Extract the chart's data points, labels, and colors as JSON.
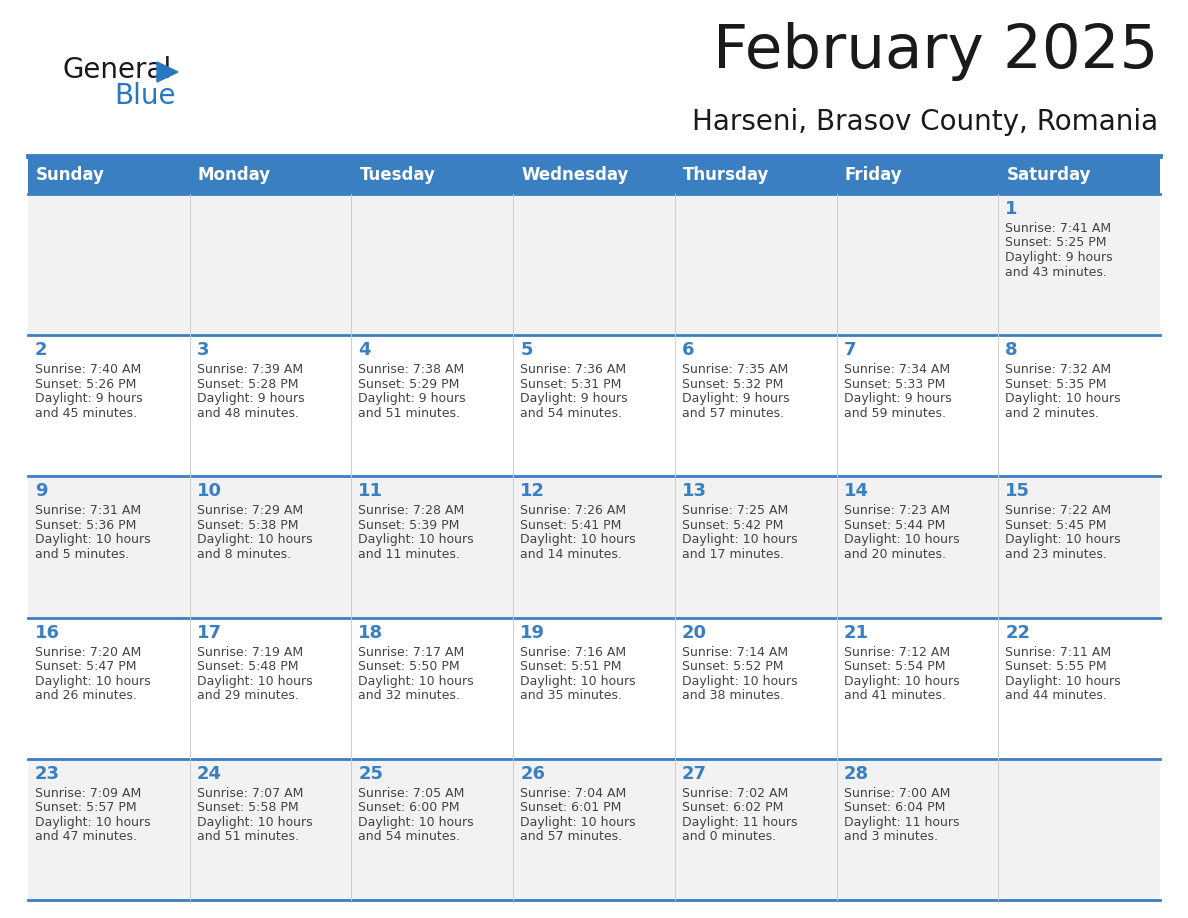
{
  "title": "February 2025",
  "subtitle": "Harseni, Brasov County, Romania",
  "days_of_week": [
    "Sunday",
    "Monday",
    "Tuesday",
    "Wednesday",
    "Thursday",
    "Friday",
    "Saturday"
  ],
  "header_bg": "#3A7FC1",
  "header_text": "#FFFFFF",
  "row_bg_light": "#F2F2F2",
  "row_bg_white": "#FFFFFF",
  "divider_color": "#3A7FC1",
  "text_color": "#444444",
  "day_number_color": "#3A7FC1",
  "logo_general_color": "#1a1a1a",
  "logo_blue_color": "#2878C0",
  "calendar_data": [
    {
      "day": 1,
      "col": 6,
      "row": 0,
      "sunrise": "7:41 AM",
      "sunset": "5:25 PM",
      "daylight_h": "9 hours",
      "daylight_m": "43 minutes."
    },
    {
      "day": 2,
      "col": 0,
      "row": 1,
      "sunrise": "7:40 AM",
      "sunset": "5:26 PM",
      "daylight_h": "9 hours",
      "daylight_m": "45 minutes."
    },
    {
      "day": 3,
      "col": 1,
      "row": 1,
      "sunrise": "7:39 AM",
      "sunset": "5:28 PM",
      "daylight_h": "9 hours",
      "daylight_m": "48 minutes."
    },
    {
      "day": 4,
      "col": 2,
      "row": 1,
      "sunrise": "7:38 AM",
      "sunset": "5:29 PM",
      "daylight_h": "9 hours",
      "daylight_m": "51 minutes."
    },
    {
      "day": 5,
      "col": 3,
      "row": 1,
      "sunrise": "7:36 AM",
      "sunset": "5:31 PM",
      "daylight_h": "9 hours",
      "daylight_m": "54 minutes."
    },
    {
      "day": 6,
      "col": 4,
      "row": 1,
      "sunrise": "7:35 AM",
      "sunset": "5:32 PM",
      "daylight_h": "9 hours",
      "daylight_m": "57 minutes."
    },
    {
      "day": 7,
      "col": 5,
      "row": 1,
      "sunrise": "7:34 AM",
      "sunset": "5:33 PM",
      "daylight_h": "9 hours",
      "daylight_m": "59 minutes."
    },
    {
      "day": 8,
      "col": 6,
      "row": 1,
      "sunrise": "7:32 AM",
      "sunset": "5:35 PM",
      "daylight_h": "10 hours",
      "daylight_m": "2 minutes."
    },
    {
      "day": 9,
      "col": 0,
      "row": 2,
      "sunrise": "7:31 AM",
      "sunset": "5:36 PM",
      "daylight_h": "10 hours",
      "daylight_m": "5 minutes."
    },
    {
      "day": 10,
      "col": 1,
      "row": 2,
      "sunrise": "7:29 AM",
      "sunset": "5:38 PM",
      "daylight_h": "10 hours",
      "daylight_m": "8 minutes."
    },
    {
      "day": 11,
      "col": 2,
      "row": 2,
      "sunrise": "7:28 AM",
      "sunset": "5:39 PM",
      "daylight_h": "10 hours",
      "daylight_m": "11 minutes."
    },
    {
      "day": 12,
      "col": 3,
      "row": 2,
      "sunrise": "7:26 AM",
      "sunset": "5:41 PM",
      "daylight_h": "10 hours",
      "daylight_m": "14 minutes."
    },
    {
      "day": 13,
      "col": 4,
      "row": 2,
      "sunrise": "7:25 AM",
      "sunset": "5:42 PM",
      "daylight_h": "10 hours",
      "daylight_m": "17 minutes."
    },
    {
      "day": 14,
      "col": 5,
      "row": 2,
      "sunrise": "7:23 AM",
      "sunset": "5:44 PM",
      "daylight_h": "10 hours",
      "daylight_m": "20 minutes."
    },
    {
      "day": 15,
      "col": 6,
      "row": 2,
      "sunrise": "7:22 AM",
      "sunset": "5:45 PM",
      "daylight_h": "10 hours",
      "daylight_m": "23 minutes."
    },
    {
      "day": 16,
      "col": 0,
      "row": 3,
      "sunrise": "7:20 AM",
      "sunset": "5:47 PM",
      "daylight_h": "10 hours",
      "daylight_m": "26 minutes."
    },
    {
      "day": 17,
      "col": 1,
      "row": 3,
      "sunrise": "7:19 AM",
      "sunset": "5:48 PM",
      "daylight_h": "10 hours",
      "daylight_m": "29 minutes."
    },
    {
      "day": 18,
      "col": 2,
      "row": 3,
      "sunrise": "7:17 AM",
      "sunset": "5:50 PM",
      "daylight_h": "10 hours",
      "daylight_m": "32 minutes."
    },
    {
      "day": 19,
      "col": 3,
      "row": 3,
      "sunrise": "7:16 AM",
      "sunset": "5:51 PM",
      "daylight_h": "10 hours",
      "daylight_m": "35 minutes."
    },
    {
      "day": 20,
      "col": 4,
      "row": 3,
      "sunrise": "7:14 AM",
      "sunset": "5:52 PM",
      "daylight_h": "10 hours",
      "daylight_m": "38 minutes."
    },
    {
      "day": 21,
      "col": 5,
      "row": 3,
      "sunrise": "7:12 AM",
      "sunset": "5:54 PM",
      "daylight_h": "10 hours",
      "daylight_m": "41 minutes."
    },
    {
      "day": 22,
      "col": 6,
      "row": 3,
      "sunrise": "7:11 AM",
      "sunset": "5:55 PM",
      "daylight_h": "10 hours",
      "daylight_m": "44 minutes."
    },
    {
      "day": 23,
      "col": 0,
      "row": 4,
      "sunrise": "7:09 AM",
      "sunset": "5:57 PM",
      "daylight_h": "10 hours",
      "daylight_m": "47 minutes."
    },
    {
      "day": 24,
      "col": 1,
      "row": 4,
      "sunrise": "7:07 AM",
      "sunset": "5:58 PM",
      "daylight_h": "10 hours",
      "daylight_m": "51 minutes."
    },
    {
      "day": 25,
      "col": 2,
      "row": 4,
      "sunrise": "7:05 AM",
      "sunset": "6:00 PM",
      "daylight_h": "10 hours",
      "daylight_m": "54 minutes."
    },
    {
      "day": 26,
      "col": 3,
      "row": 4,
      "sunrise": "7:04 AM",
      "sunset": "6:01 PM",
      "daylight_h": "10 hours",
      "daylight_m": "57 minutes."
    },
    {
      "day": 27,
      "col": 4,
      "row": 4,
      "sunrise": "7:02 AM",
      "sunset": "6:02 PM",
      "daylight_h": "11 hours",
      "daylight_m": "0 minutes."
    },
    {
      "day": 28,
      "col": 5,
      "row": 4,
      "sunrise": "7:00 AM",
      "sunset": "6:04 PM",
      "daylight_h": "11 hours",
      "daylight_m": "3 minutes."
    }
  ]
}
